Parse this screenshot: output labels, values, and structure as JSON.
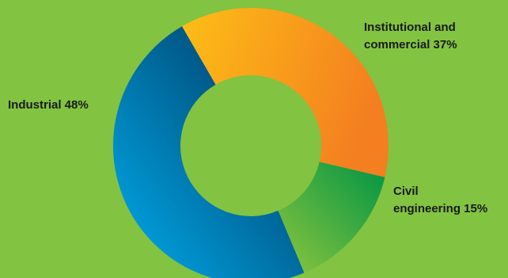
{
  "background_color": "#82c341",
  "chart_data": {
    "type": "pie",
    "variant": "donut",
    "start_angle_deg": -30,
    "direction": "clockwise",
    "title": "",
    "slices": [
      {
        "key": "institutional",
        "value": 37,
        "label_lines": [
          "Institutional and",
          "commercial 37%"
        ],
        "gradient": [
          "#fdbe16",
          "#f47f20"
        ]
      },
      {
        "key": "civil",
        "value": 15,
        "label_lines": [
          "Civil",
          "engineering 15%"
        ],
        "gradient": [
          "#009444",
          "#8dc63f"
        ]
      },
      {
        "key": "industrial",
        "value": 48,
        "label_lines": [
          "Industrial 48%"
        ],
        "gradient": [
          "#00aeef",
          "#004f7c"
        ]
      }
    ]
  }
}
